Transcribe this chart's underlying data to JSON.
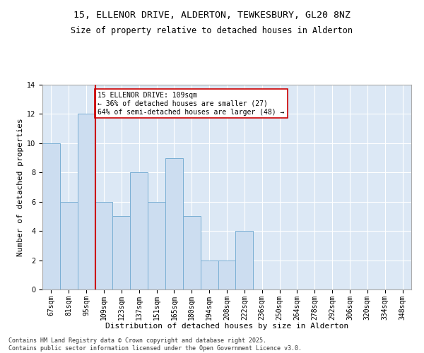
{
  "title": "15, ELLENOR DRIVE, ALDERTON, TEWKESBURY, GL20 8NZ",
  "subtitle": "Size of property relative to detached houses in Alderton",
  "xlabel": "Distribution of detached houses by size in Alderton",
  "ylabel": "Number of detached properties",
  "bar_color": "#ccddf0",
  "bar_edge_color": "#7aafd4",
  "background_color": "#dce8f5",
  "grid_color": "#ffffff",
  "categories": [
    "67sqm",
    "81sqm",
    "95sqm",
    "109sqm",
    "123sqm",
    "137sqm",
    "151sqm",
    "165sqm",
    "180sqm",
    "194sqm",
    "208sqm",
    "222sqm",
    "236sqm",
    "250sqm",
    "264sqm",
    "278sqm",
    "292sqm",
    "306sqm",
    "320sqm",
    "334sqm",
    "348sqm"
  ],
  "values": [
    10,
    6,
    12,
    6,
    5,
    8,
    6,
    9,
    5,
    2,
    2,
    4,
    0,
    0,
    0,
    0,
    0,
    0,
    0,
    0,
    0
  ],
  "ylim": [
    0,
    14
  ],
  "yticks": [
    0,
    2,
    4,
    6,
    8,
    10,
    12,
    14
  ],
  "red_line_index": 3,
  "annotation_text": "15 ELLENOR DRIVE: 109sqm\n← 36% of detached houses are smaller (27)\n64% of semi-detached houses are larger (48) →",
  "annotation_box_color": "#ffffff",
  "annotation_box_edge": "#cc0000",
  "red_line_color": "#cc0000",
  "footer_line1": "Contains HM Land Registry data © Crown copyright and database right 2025.",
  "footer_line2": "Contains public sector information licensed under the Open Government Licence v3.0.",
  "title_fontsize": 9.5,
  "subtitle_fontsize": 8.5,
  "axis_label_fontsize": 8,
  "tick_fontsize": 7,
  "annotation_fontsize": 7,
  "footer_fontsize": 6
}
